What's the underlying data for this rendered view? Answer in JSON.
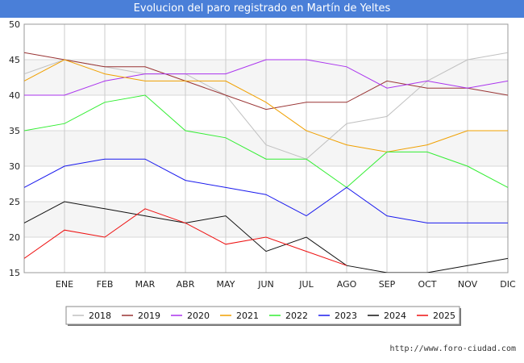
{
  "chart_data": {
    "type": "line",
    "title": "Evolucion del paro registrado en Martín de Yeltes",
    "categories": [
      "",
      "ENE",
      "FEB",
      "MAR",
      "ABR",
      "MAY",
      "JUN",
      "JUL",
      "AGO",
      "SEP",
      "OCT",
      "NOV",
      "DIC"
    ],
    "ylim": [
      15,
      50
    ],
    "yticks": [
      15,
      20,
      25,
      30,
      35,
      40,
      45,
      50
    ],
    "grid": true,
    "legend_position": "bottom",
    "series": [
      {
        "name": "2018",
        "color": "#c0c0c0",
        "values": [
          43,
          45,
          44,
          43,
          43,
          40,
          33,
          31,
          36,
          37,
          42,
          45,
          46
        ]
      },
      {
        "name": "2019",
        "color": "#993333",
        "values": [
          46,
          45,
          44,
          44,
          42,
          40,
          38,
          39,
          39,
          42,
          41,
          41,
          40
        ]
      },
      {
        "name": "2020",
        "color": "#aa33ee",
        "values": [
          40,
          40,
          42,
          43,
          43,
          43,
          45,
          45,
          44,
          41,
          42,
          41,
          42
        ]
      },
      {
        "name": "2021",
        "color": "#f0a000",
        "values": [
          42,
          45,
          43,
          42,
          42,
          42,
          39,
          35,
          33,
          32,
          33,
          35,
          35
        ]
      },
      {
        "name": "2022",
        "color": "#33ee33",
        "values": [
          35,
          36,
          39,
          40,
          35,
          34,
          31,
          31,
          27,
          32,
          32,
          30,
          27
        ]
      },
      {
        "name": "2023",
        "color": "#1a1aee",
        "values": [
          27,
          30,
          31,
          31,
          28,
          27,
          26,
          23,
          27,
          23,
          22,
          22,
          22
        ]
      },
      {
        "name": "2024",
        "color": "#111111",
        "values": [
          22,
          25,
          24,
          23,
          22,
          23,
          18,
          20,
          16,
          15,
          15,
          16,
          17
        ]
      },
      {
        "name": "2025",
        "color": "#ee1111",
        "values": [
          17,
          21,
          20,
          24,
          22,
          19,
          20,
          18,
          16,
          null,
          null,
          null,
          null
        ]
      }
    ]
  },
  "footer": {
    "credit": "http://www.foro-ciudad.com"
  }
}
